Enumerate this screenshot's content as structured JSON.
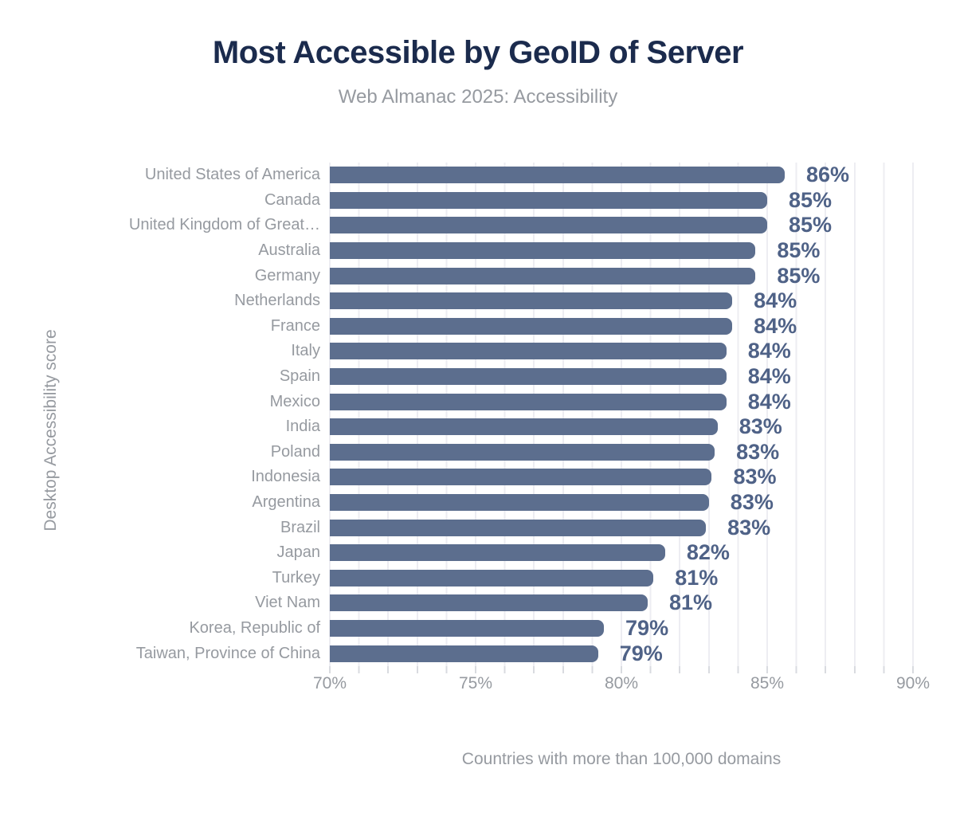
{
  "title": "Most Accessible by GeoID of Server",
  "subtitle": "Web Almanac 2025: Accessibility",
  "chart_data": {
    "type": "bar",
    "orientation": "horizontal",
    "title": "Most Accessible by GeoID of Server",
    "subtitle": "Web Almanac 2025: Accessibility",
    "ylabel": "Desktop Accessibility score",
    "xlabel": "Countries with more than 100,000 domains",
    "xlim": [
      70,
      90
    ],
    "x_ticks": [
      "70%",
      "75%",
      "80%",
      "85%",
      "90%"
    ],
    "grid": "vertical minor gridlines every 1%, ticks every 1%, labels every 5%",
    "legend": "none",
    "categories": [
      "United States of America",
      "Canada",
      "United Kingdom of Great…",
      "Australia",
      "Germany",
      "Netherlands",
      "France",
      "Italy",
      "Spain",
      "Mexico",
      "India",
      "Poland",
      "Indonesia",
      "Argentina",
      "Brazil",
      "Japan",
      "Turkey",
      "Viet Nam",
      "Korea, Republic of",
      "Taiwan, Province of China"
    ],
    "values": [
      86,
      85,
      85,
      85,
      85,
      84,
      84,
      84,
      84,
      84,
      83,
      83,
      83,
      83,
      83,
      82,
      81,
      81,
      79,
      79
    ],
    "value_labels": [
      "86%",
      "85%",
      "85%",
      "85%",
      "85%",
      "84%",
      "84%",
      "84%",
      "84%",
      "84%",
      "83%",
      "83%",
      "83%",
      "83%",
      "83%",
      "82%",
      "81%",
      "81%",
      "79%",
      "79%"
    ],
    "values_precise": [
      85.6,
      85.0,
      85.0,
      84.6,
      84.6,
      83.8,
      83.8,
      83.6,
      83.6,
      83.6,
      83.3,
      83.2,
      83.1,
      83.0,
      82.9,
      81.5,
      81.1,
      80.9,
      79.4,
      79.2
    ]
  },
  "colors": {
    "bar": "#5c6e8e",
    "value_label": "#4f6287",
    "title": "#1b2b4d",
    "axis_text": "#969aa0",
    "gridline": "#ededf2",
    "tick": "#d9dbe0",
    "background": "#ffffff"
  }
}
